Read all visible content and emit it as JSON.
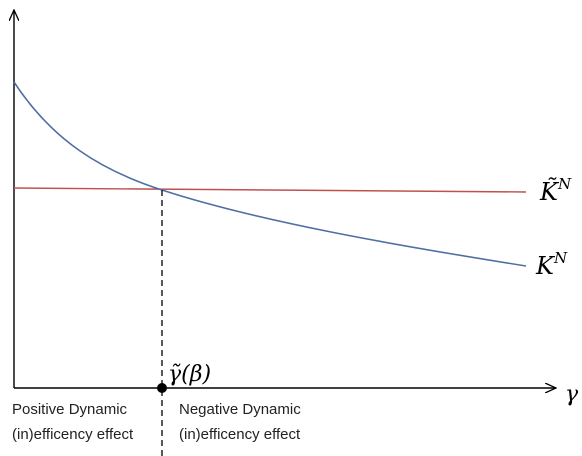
{
  "labels": {
    "x_axis": "γ",
    "threshold": "γ̃(β)",
    "curve_flat": "K̃",
    "curve_flat_sup": "N",
    "curve_decreasing": "K",
    "curve_decreasing_sup": "N"
  },
  "regions": {
    "left_line1": "Positive Dynamic",
    "left_line2": "(in)efficency effect",
    "right_line1": "Negative Dynamic",
    "right_line2": "(in)efficency effect"
  },
  "colors": {
    "axis": "#000000",
    "flat_curve": "#c0504d",
    "decreasing_curve": "#4f6fa3",
    "marker": "#000000"
  }
}
